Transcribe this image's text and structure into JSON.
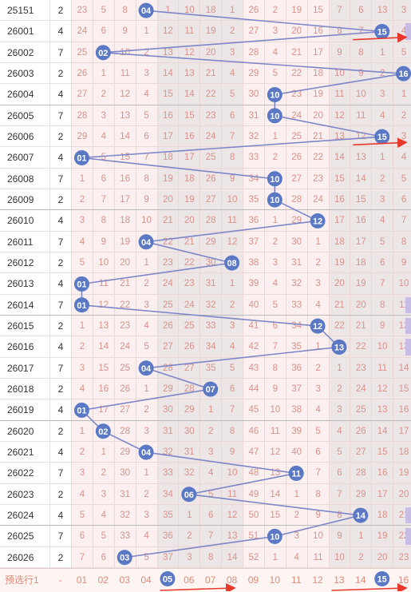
{
  "accent": "#5b78c5",
  "arrow_color": "#e8382d",
  "columns": [
    "01",
    "02",
    "03",
    "04",
    "05",
    "06",
    "07",
    "08",
    "09",
    "10",
    "11",
    "12",
    "13",
    "14",
    "15",
    "16"
  ],
  "footer": {
    "label": "预选行1",
    "dash": "-",
    "cells": [
      "01",
      "02",
      "03",
      "04",
      "05",
      "06",
      "07",
      "08",
      "09",
      "10",
      "11",
      "12",
      "13",
      "14",
      "15",
      "16"
    ],
    "selected": [
      "05",
      "15"
    ]
  },
  "rows": [
    {
      "issue": "25151",
      "extra": "2",
      "pick": "04",
      "cells": [
        "23",
        "5",
        "8",
        "04",
        "1",
        "10",
        "18",
        "1",
        "26",
        "2",
        "19",
        "15",
        "7",
        "6",
        "13",
        "3"
      ]
    },
    {
      "issue": "26001",
      "extra": "4",
      "pick": "15",
      "cells": [
        "24",
        "6",
        "9",
        "1",
        "12",
        "11",
        "19",
        "2",
        "27",
        "3",
        "20",
        "16",
        "8",
        "7",
        "15",
        "4"
      ]
    },
    {
      "issue": "26002",
      "extra": "7",
      "pick": "02",
      "cells": [
        "25",
        "02",
        "10",
        "2",
        "13",
        "12",
        "20",
        "3",
        "28",
        "4",
        "21",
        "17",
        "9",
        "8",
        "1",
        "5"
      ]
    },
    {
      "issue": "26003",
      "extra": "2",
      "pick": "16",
      "cells": [
        "26",
        "1",
        "11",
        "3",
        "14",
        "13",
        "21",
        "4",
        "29",
        "5",
        "22",
        "18",
        "10",
        "9",
        "2",
        "16"
      ]
    },
    {
      "issue": "26004",
      "extra": "4",
      "pick": "10",
      "cells": [
        "27",
        "2",
        "12",
        "4",
        "15",
        "14",
        "22",
        "5",
        "30",
        "10",
        "23",
        "19",
        "11",
        "10",
        "3",
        "1"
      ]
    },
    {
      "issue": "26005",
      "extra": "7",
      "pick": "10",
      "cells": [
        "28",
        "3",
        "13",
        "5",
        "16",
        "15",
        "23",
        "6",
        "31",
        "10",
        "24",
        "20",
        "12",
        "11",
        "4",
        "2"
      ]
    },
    {
      "issue": "26006",
      "extra": "2",
      "pick": "15",
      "cells": [
        "29",
        "4",
        "14",
        "6",
        "17",
        "16",
        "24",
        "7",
        "32",
        "1",
        "25",
        "21",
        "13",
        "12",
        "15",
        "3"
      ]
    },
    {
      "issue": "26007",
      "extra": "4",
      "pick": "01",
      "cells": [
        "01",
        "5",
        "15",
        "7",
        "18",
        "17",
        "25",
        "8",
        "33",
        "2",
        "26",
        "22",
        "14",
        "13",
        "1",
        "4"
      ]
    },
    {
      "issue": "26008",
      "extra": "7",
      "pick": "10",
      "cells": [
        "1",
        "6",
        "16",
        "8",
        "19",
        "18",
        "26",
        "9",
        "34",
        "10",
        "27",
        "23",
        "15",
        "14",
        "2",
        "5"
      ]
    },
    {
      "issue": "26009",
      "extra": "2",
      "pick": "10",
      "cells": [
        "2",
        "7",
        "17",
        "9",
        "20",
        "19",
        "27",
        "10",
        "35",
        "10",
        "28",
        "24",
        "16",
        "15",
        "3",
        "6"
      ]
    },
    {
      "issue": "26010",
      "extra": "4",
      "pick": "12",
      "cells": [
        "3",
        "8",
        "18",
        "10",
        "21",
        "20",
        "28",
        "11",
        "36",
        "1",
        "29",
        "12",
        "17",
        "16",
        "4",
        "7"
      ]
    },
    {
      "issue": "26011",
      "extra": "7",
      "pick": "04",
      "cells": [
        "4",
        "9",
        "19",
        "04",
        "22",
        "21",
        "29",
        "12",
        "37",
        "2",
        "30",
        "1",
        "18",
        "17",
        "5",
        "8"
      ]
    },
    {
      "issue": "26012",
      "extra": "2",
      "pick": "08",
      "cells": [
        "5",
        "10",
        "20",
        "1",
        "23",
        "22",
        "30",
        "08",
        "38",
        "3",
        "31",
        "2",
        "19",
        "18",
        "6",
        "9"
      ]
    },
    {
      "issue": "26013",
      "extra": "4",
      "pick": "01",
      "cells": [
        "01",
        "11",
        "21",
        "2",
        "24",
        "23",
        "31",
        "1",
        "39",
        "4",
        "32",
        "3",
        "20",
        "19",
        "7",
        "10"
      ]
    },
    {
      "issue": "26014",
      "extra": "7",
      "pick": "01",
      "cells": [
        "01",
        "12",
        "22",
        "3",
        "25",
        "24",
        "32",
        "2",
        "40",
        "5",
        "33",
        "4",
        "21",
        "20",
        "8",
        "11"
      ]
    },
    {
      "issue": "26015",
      "extra": "2",
      "pick": "12",
      "cells": [
        "1",
        "13",
        "23",
        "4",
        "26",
        "25",
        "33",
        "3",
        "41",
        "6",
        "34",
        "12",
        "22",
        "21",
        "9",
        "12"
      ]
    },
    {
      "issue": "26016",
      "extra": "4",
      "pick": "13",
      "cells": [
        "2",
        "14",
        "24",
        "5",
        "27",
        "26",
        "34",
        "4",
        "42",
        "7",
        "35",
        "1",
        "13",
        "22",
        "10",
        "13"
      ]
    },
    {
      "issue": "26017",
      "extra": "7",
      "pick": "04",
      "cells": [
        "3",
        "15",
        "25",
        "04",
        "28",
        "27",
        "35",
        "5",
        "43",
        "8",
        "36",
        "2",
        "1",
        "23",
        "11",
        "14"
      ]
    },
    {
      "issue": "26018",
      "extra": "2",
      "pick": "07",
      "cells": [
        "4",
        "16",
        "26",
        "1",
        "29",
        "28",
        "07",
        "6",
        "44",
        "9",
        "37",
        "3",
        "2",
        "24",
        "12",
        "15"
      ]
    },
    {
      "issue": "26019",
      "extra": "4",
      "pick": "01",
      "cells": [
        "01",
        "17",
        "27",
        "2",
        "30",
        "29",
        "1",
        "7",
        "45",
        "10",
        "38",
        "4",
        "3",
        "25",
        "13",
        "16"
      ]
    },
    {
      "issue": "26020",
      "extra": "2",
      "pick": "02",
      "cells": [
        "1",
        "02",
        "28",
        "3",
        "31",
        "30",
        "2",
        "8",
        "46",
        "11",
        "39",
        "5",
        "4",
        "26",
        "14",
        "17"
      ]
    },
    {
      "issue": "26021",
      "extra": "4",
      "pick": "04",
      "cells": [
        "2",
        "1",
        "29",
        "04",
        "32",
        "31",
        "3",
        "9",
        "47",
        "12",
        "40",
        "6",
        "5",
        "27",
        "15",
        "18"
      ]
    },
    {
      "issue": "26022",
      "extra": "7",
      "pick": "11",
      "cells": [
        "3",
        "2",
        "30",
        "1",
        "33",
        "32",
        "4",
        "10",
        "48",
        "13",
        "11",
        "7",
        "6",
        "28",
        "16",
        "19"
      ]
    },
    {
      "issue": "26023",
      "extra": "2",
      "pick": "06",
      "cells": [
        "4",
        "3",
        "31",
        "2",
        "34",
        "06",
        "5",
        "11",
        "49",
        "14",
        "1",
        "8",
        "7",
        "29",
        "17",
        "20"
      ]
    },
    {
      "issue": "26024",
      "extra": "4",
      "pick": "14",
      "cells": [
        "5",
        "4",
        "32",
        "3",
        "35",
        "1",
        "6",
        "12",
        "50",
        "15",
        "2",
        "9",
        "8",
        "14",
        "18",
        "21"
      ]
    },
    {
      "issue": "26025",
      "extra": "7",
      "pick": "10",
      "cells": [
        "6",
        "5",
        "33",
        "4",
        "36",
        "2",
        "7",
        "13",
        "51",
        "10",
        "3",
        "10",
        "9",
        "1",
        "19",
        "22"
      ]
    },
    {
      "issue": "26026",
      "extra": "2",
      "pick": "03",
      "cells": [
        "7",
        "6",
        "03",
        "5",
        "37",
        "3",
        "8",
        "14",
        "52",
        "1",
        "4",
        "11",
        "10",
        "2",
        "20",
        "23"
      ]
    }
  ],
  "arrows": [
    {
      "row": "26001",
      "from": "14",
      "to": "16"
    },
    {
      "row": "26006",
      "from": "14",
      "to": "16"
    },
    {
      "row": "footer",
      "from": "05",
      "to": "08"
    },
    {
      "row": "footer",
      "from": "13",
      "to": "16"
    }
  ]
}
